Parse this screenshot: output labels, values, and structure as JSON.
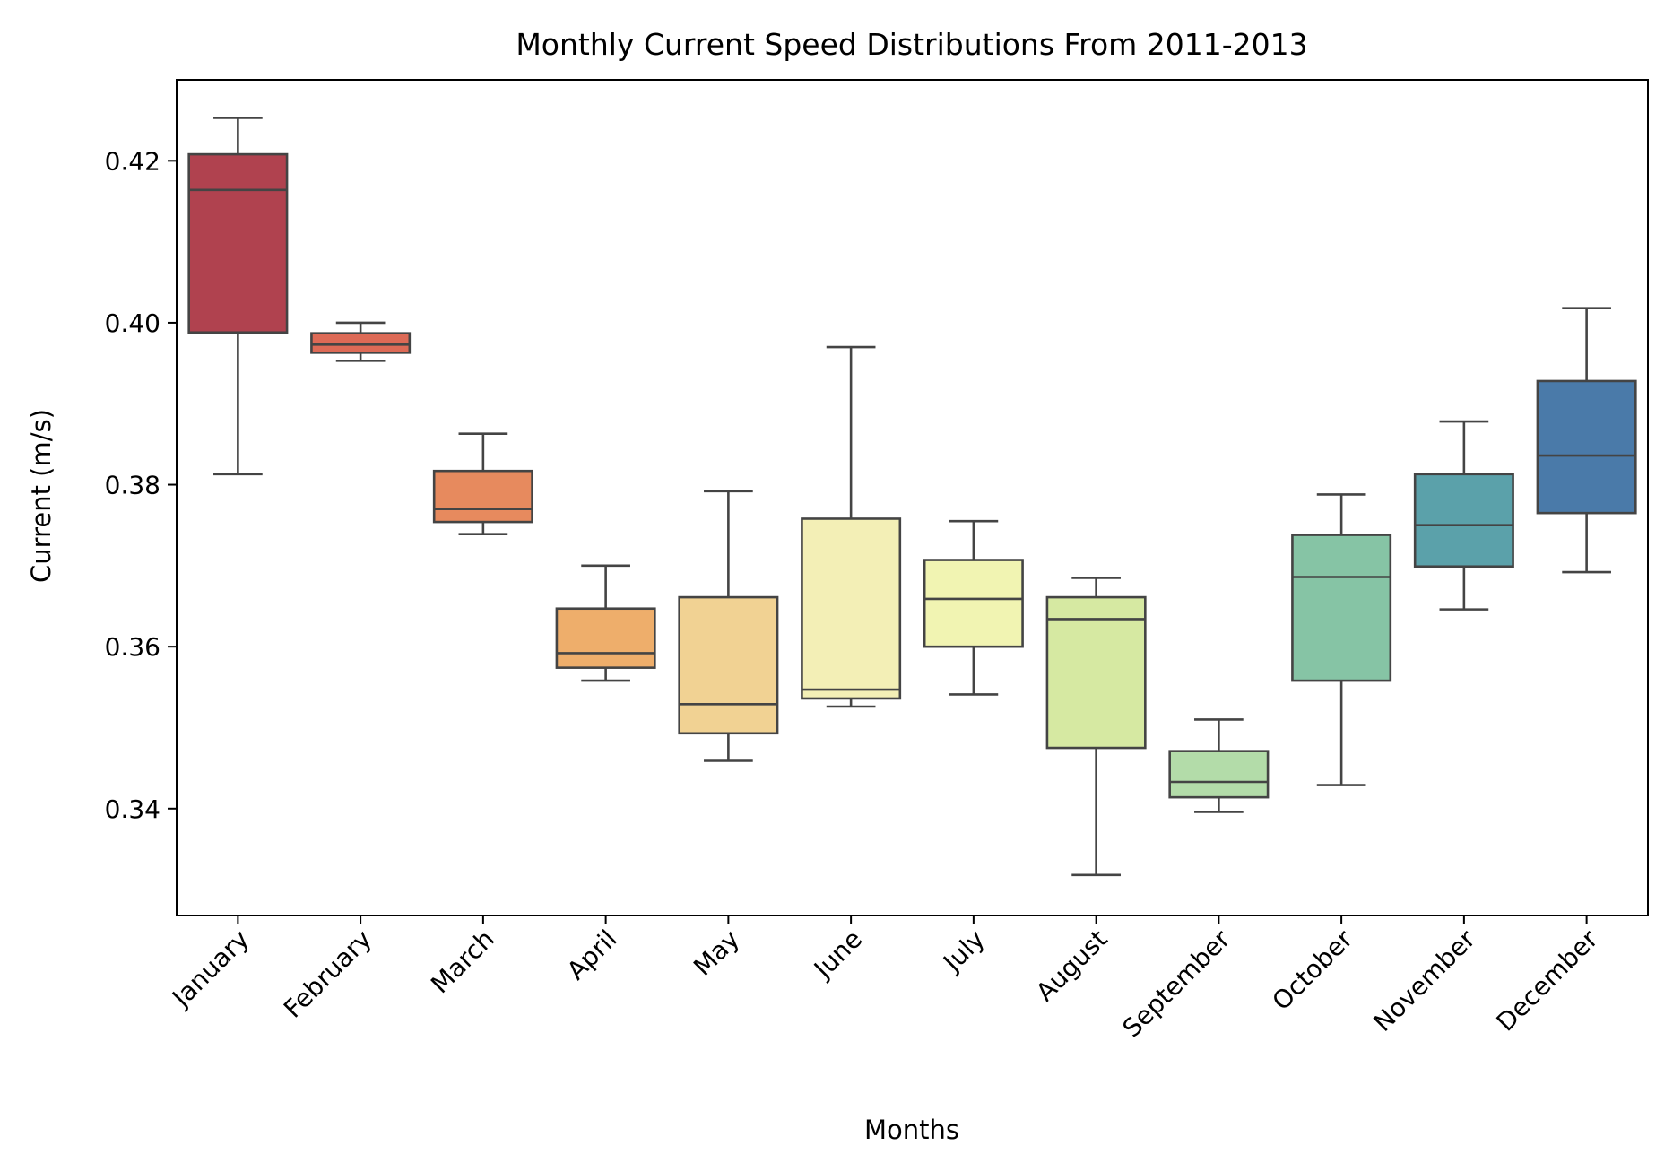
{
  "chart_data": {
    "type": "box",
    "title": "Monthly Current Speed Distributions From 2011-2013",
    "xlabel": "Months",
    "ylabel": "Current (m/s)",
    "ylim": [
      0.3268,
      0.43
    ],
    "yticks": [
      0.34,
      0.36,
      0.38,
      0.4,
      0.42
    ],
    "ytick_labels": [
      "0.34",
      "0.36",
      "0.38",
      "0.40",
      "0.42"
    ],
    "grid": false,
    "legend": "none",
    "categories": [
      "January",
      "February",
      "March",
      "April",
      "May",
      "June",
      "July",
      "August",
      "September",
      "October",
      "November",
      "December"
    ],
    "boxes": [
      {
        "whislo": 0.3813,
        "q1": 0.3988,
        "med": 0.4164,
        "q3": 0.4208,
        "whishi": 0.4253,
        "color": "#b0424f"
      },
      {
        "whislo": 0.3953,
        "q1": 0.3963,
        "med": 0.3973,
        "q3": 0.3987,
        "whishi": 0.4,
        "color": "#dd6a56"
      },
      {
        "whislo": 0.3739,
        "q1": 0.3754,
        "med": 0.377,
        "q3": 0.3817,
        "whishi": 0.3863,
        "color": "#e78a5e"
      },
      {
        "whislo": 0.3558,
        "q1": 0.3574,
        "med": 0.3592,
        "q3": 0.3647,
        "whishi": 0.37,
        "color": "#eeae6b"
      },
      {
        "whislo": 0.3459,
        "q1": 0.3493,
        "med": 0.3529,
        "q3": 0.3661,
        "whishi": 0.3792,
        "color": "#f1d293"
      },
      {
        "whislo": 0.3526,
        "q1": 0.3536,
        "med": 0.3547,
        "q3": 0.3758,
        "whishi": 0.397,
        "color": "#f3efb6"
      },
      {
        "whislo": 0.3541,
        "q1": 0.36,
        "med": 0.3659,
        "q3": 0.3707,
        "whishi": 0.3755,
        "color": "#f1f4b2"
      },
      {
        "whislo": 0.3318,
        "q1": 0.3475,
        "med": 0.3634,
        "q3": 0.3661,
        "whishi": 0.3685,
        "color": "#d6e9a2"
      },
      {
        "whislo": 0.3396,
        "q1": 0.3414,
        "med": 0.3433,
        "q3": 0.3471,
        "whishi": 0.351,
        "color": "#b3dca9"
      },
      {
        "whislo": 0.3429,
        "q1": 0.3558,
        "med": 0.3686,
        "q3": 0.3738,
        "whishi": 0.3788,
        "color": "#86c4a5"
      },
      {
        "whislo": 0.3646,
        "q1": 0.3699,
        "med": 0.375,
        "q3": 0.3813,
        "whishi": 0.3878,
        "color": "#5ba1aa"
      },
      {
        "whislo": 0.3692,
        "q1": 0.3765,
        "med": 0.3836,
        "q3": 0.3928,
        "whishi": 0.4018,
        "color": "#4a7aa9"
      }
    ],
    "line_color": "#444444"
  }
}
